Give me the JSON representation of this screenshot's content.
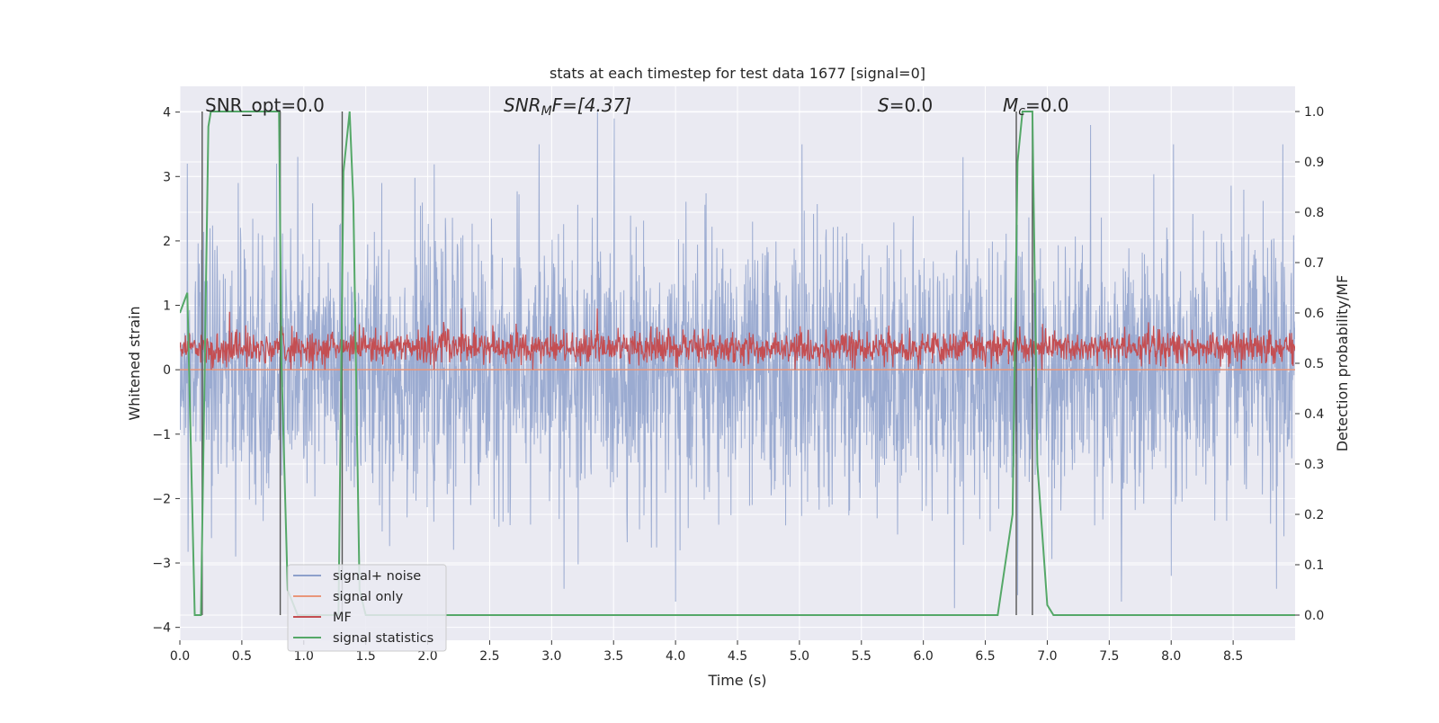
{
  "chart_data": {
    "type": "line",
    "title": "stats at each timestep for test data 1677 [signal=0]",
    "xlabel": "Time (s)",
    "ylabel_left": "Whitened strain",
    "ylabel_right": "Detection probability/MF",
    "xlim": [
      0.0,
      9.0
    ],
    "ylim_left": [
      -4.2,
      4.4
    ],
    "ylim_right": [
      -0.05,
      1.05
    ],
    "grid": true,
    "xticks": [
      "0.0",
      "0.5",
      "1.0",
      "1.5",
      "2.0",
      "2.5",
      "3.0",
      "3.5",
      "4.0",
      "4.5",
      "5.0",
      "5.5",
      "6.0",
      "6.5",
      "7.0",
      "7.5",
      "8.0",
      "8.5"
    ],
    "yticks_left": [
      "4",
      "3",
      "2",
      "1",
      "0",
      "−1",
      "−2",
      "−3",
      "−4"
    ],
    "yticks_right": [
      "1.0",
      "0.9",
      "0.8",
      "0.7",
      "0.6",
      "0.5",
      "0.4",
      "0.3",
      "0.2",
      "0.1",
      "0.0"
    ],
    "annotations": {
      "snr_opt": "SNR_opt=0.0",
      "snr_mf_sym": "SNR",
      "snr_mf_sub": "M",
      "snr_mf_tail": "F=[4.37]",
      "s": "S",
      "s_tail": "=0.0",
      "mc": "M",
      "mc_sub": "c",
      "mc_tail": "=0.0"
    },
    "legend": {
      "placement": "lower-left",
      "entries": [
        "signal+ noise",
        "signal only",
        "MF",
        "signal statistics"
      ]
    },
    "series": [
      {
        "name": "signal+ noise",
        "color": "#8da0cb",
        "style": "dense gaussian noise",
        "sigma": 1.0,
        "notable_peaks": [
          {
            "x": 0.06,
            "y": 3.2
          },
          {
            "x": 0.47,
            "y": 2.9
          },
          {
            "x": 0.78,
            "y": 3.2
          },
          {
            "x": 1.63,
            "y": 2.9
          },
          {
            "x": 2.9,
            "y": 3.5
          },
          {
            "x": 3.37,
            "y": 4.0
          },
          {
            "x": 5.02,
            "y": 3.5
          },
          {
            "x": 6.32,
            "y": 3.3
          },
          {
            "x": 7.35,
            "y": 3.8
          },
          {
            "x": 8.02,
            "y": 3.5
          },
          {
            "x": 8.9,
            "y": 3.5
          }
        ],
        "notable_troughs": [
          {
            "x": 0.45,
            "y": -2.9
          },
          {
            "x": 3.1,
            "y": -3.4
          },
          {
            "x": 4.0,
            "y": -3.6
          },
          {
            "x": 6.25,
            "y": -3.7
          },
          {
            "x": 6.76,
            "y": -3.5
          },
          {
            "x": 7.6,
            "y": -3.6
          },
          {
            "x": 8.0,
            "y": -3.2
          },
          {
            "x": 8.85,
            "y": -3.4
          }
        ]
      },
      {
        "name": "signal only",
        "color": "#e9967a",
        "x": [
          0.0,
          9.0
        ],
        "y": [
          0.0,
          0.0
        ]
      },
      {
        "name": "MF",
        "color": "#c44e52",
        "style": "dense noise band",
        "range": [
          0.0,
          0.8
        ],
        "notable_peaks": [
          {
            "x": 0.4,
            "y": 0.9
          },
          {
            "x": 2.27,
            "y": 0.95
          },
          {
            "x": 3.37,
            "y": 0.95
          }
        ]
      },
      {
        "name": "signal statistics",
        "color": "#55a868",
        "axis": "right",
        "x": [
          0.0,
          0.06,
          0.12,
          0.17,
          0.23,
          0.25,
          0.3,
          0.5,
          0.8,
          0.82,
          0.87,
          0.95,
          1.0,
          1.2,
          1.28,
          1.32,
          1.37,
          1.4,
          1.45,
          1.5,
          2.0,
          3.0,
          4.0,
          5.0,
          6.0,
          6.6,
          6.72,
          6.76,
          6.8,
          6.88,
          6.92,
          7.0,
          7.05,
          8.0,
          9.0
        ],
        "y": [
          0.6,
          0.64,
          0.0,
          0.0,
          0.97,
          1.0,
          1.0,
          1.0,
          1.0,
          0.5,
          0.05,
          0.0,
          0.0,
          0.0,
          0.0,
          0.88,
          1.0,
          0.82,
          0.05,
          0.0,
          0.0,
          0.0,
          0.0,
          0.0,
          0.0,
          0.0,
          0.2,
          0.9,
          1.0,
          1.0,
          0.3,
          0.02,
          0.0,
          0.0,
          0.0
        ]
      }
    ],
    "vertical_markers": [
      0.18,
      0.81,
      1.31,
      6.75,
      6.88
    ]
  },
  "colors": {
    "background": "#eaeaf2",
    "grid": "#ffffff",
    "marker": "#555555"
  }
}
